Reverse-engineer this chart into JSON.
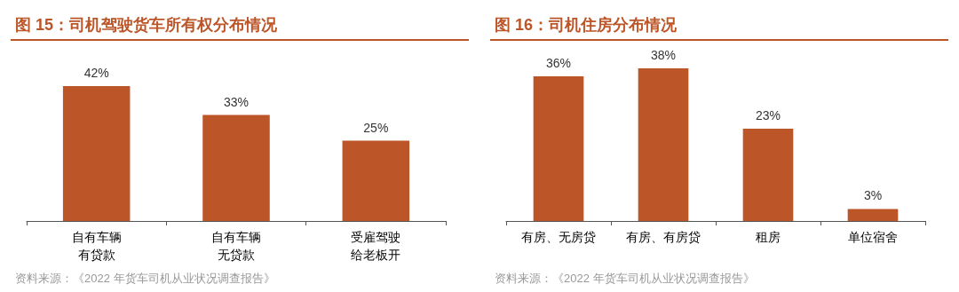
{
  "chart_data": [
    {
      "type": "bar",
      "title": "图 15：司机驾驶货车所有权分布情况",
      "categories": [
        "自有车辆有贷款",
        "自有车辆无贷款",
        "受雇驾驶给老板开"
      ],
      "values": [
        42,
        33,
        25
      ],
      "value_labels": [
        "42%",
        "33%",
        "25%"
      ],
      "color": "#bc5527",
      "annotations": [
        "资料来源：《2022 年货车司机从业状况调查报告》"
      ]
    },
    {
      "type": "bar",
      "title": "图 16：司机住房分布情况",
      "categories": [
        "有房、无房贷",
        "有房、有房贷",
        "租房",
        "单位宿舍"
      ],
      "values": [
        36,
        38,
        23,
        3
      ],
      "value_labels": [
        "36%",
        "38%",
        "23%",
        "3%"
      ],
      "color": "#bc5527",
      "annotations": [
        "资料来源：《2022 年货车司机从业状况调查报告》"
      ]
    }
  ]
}
